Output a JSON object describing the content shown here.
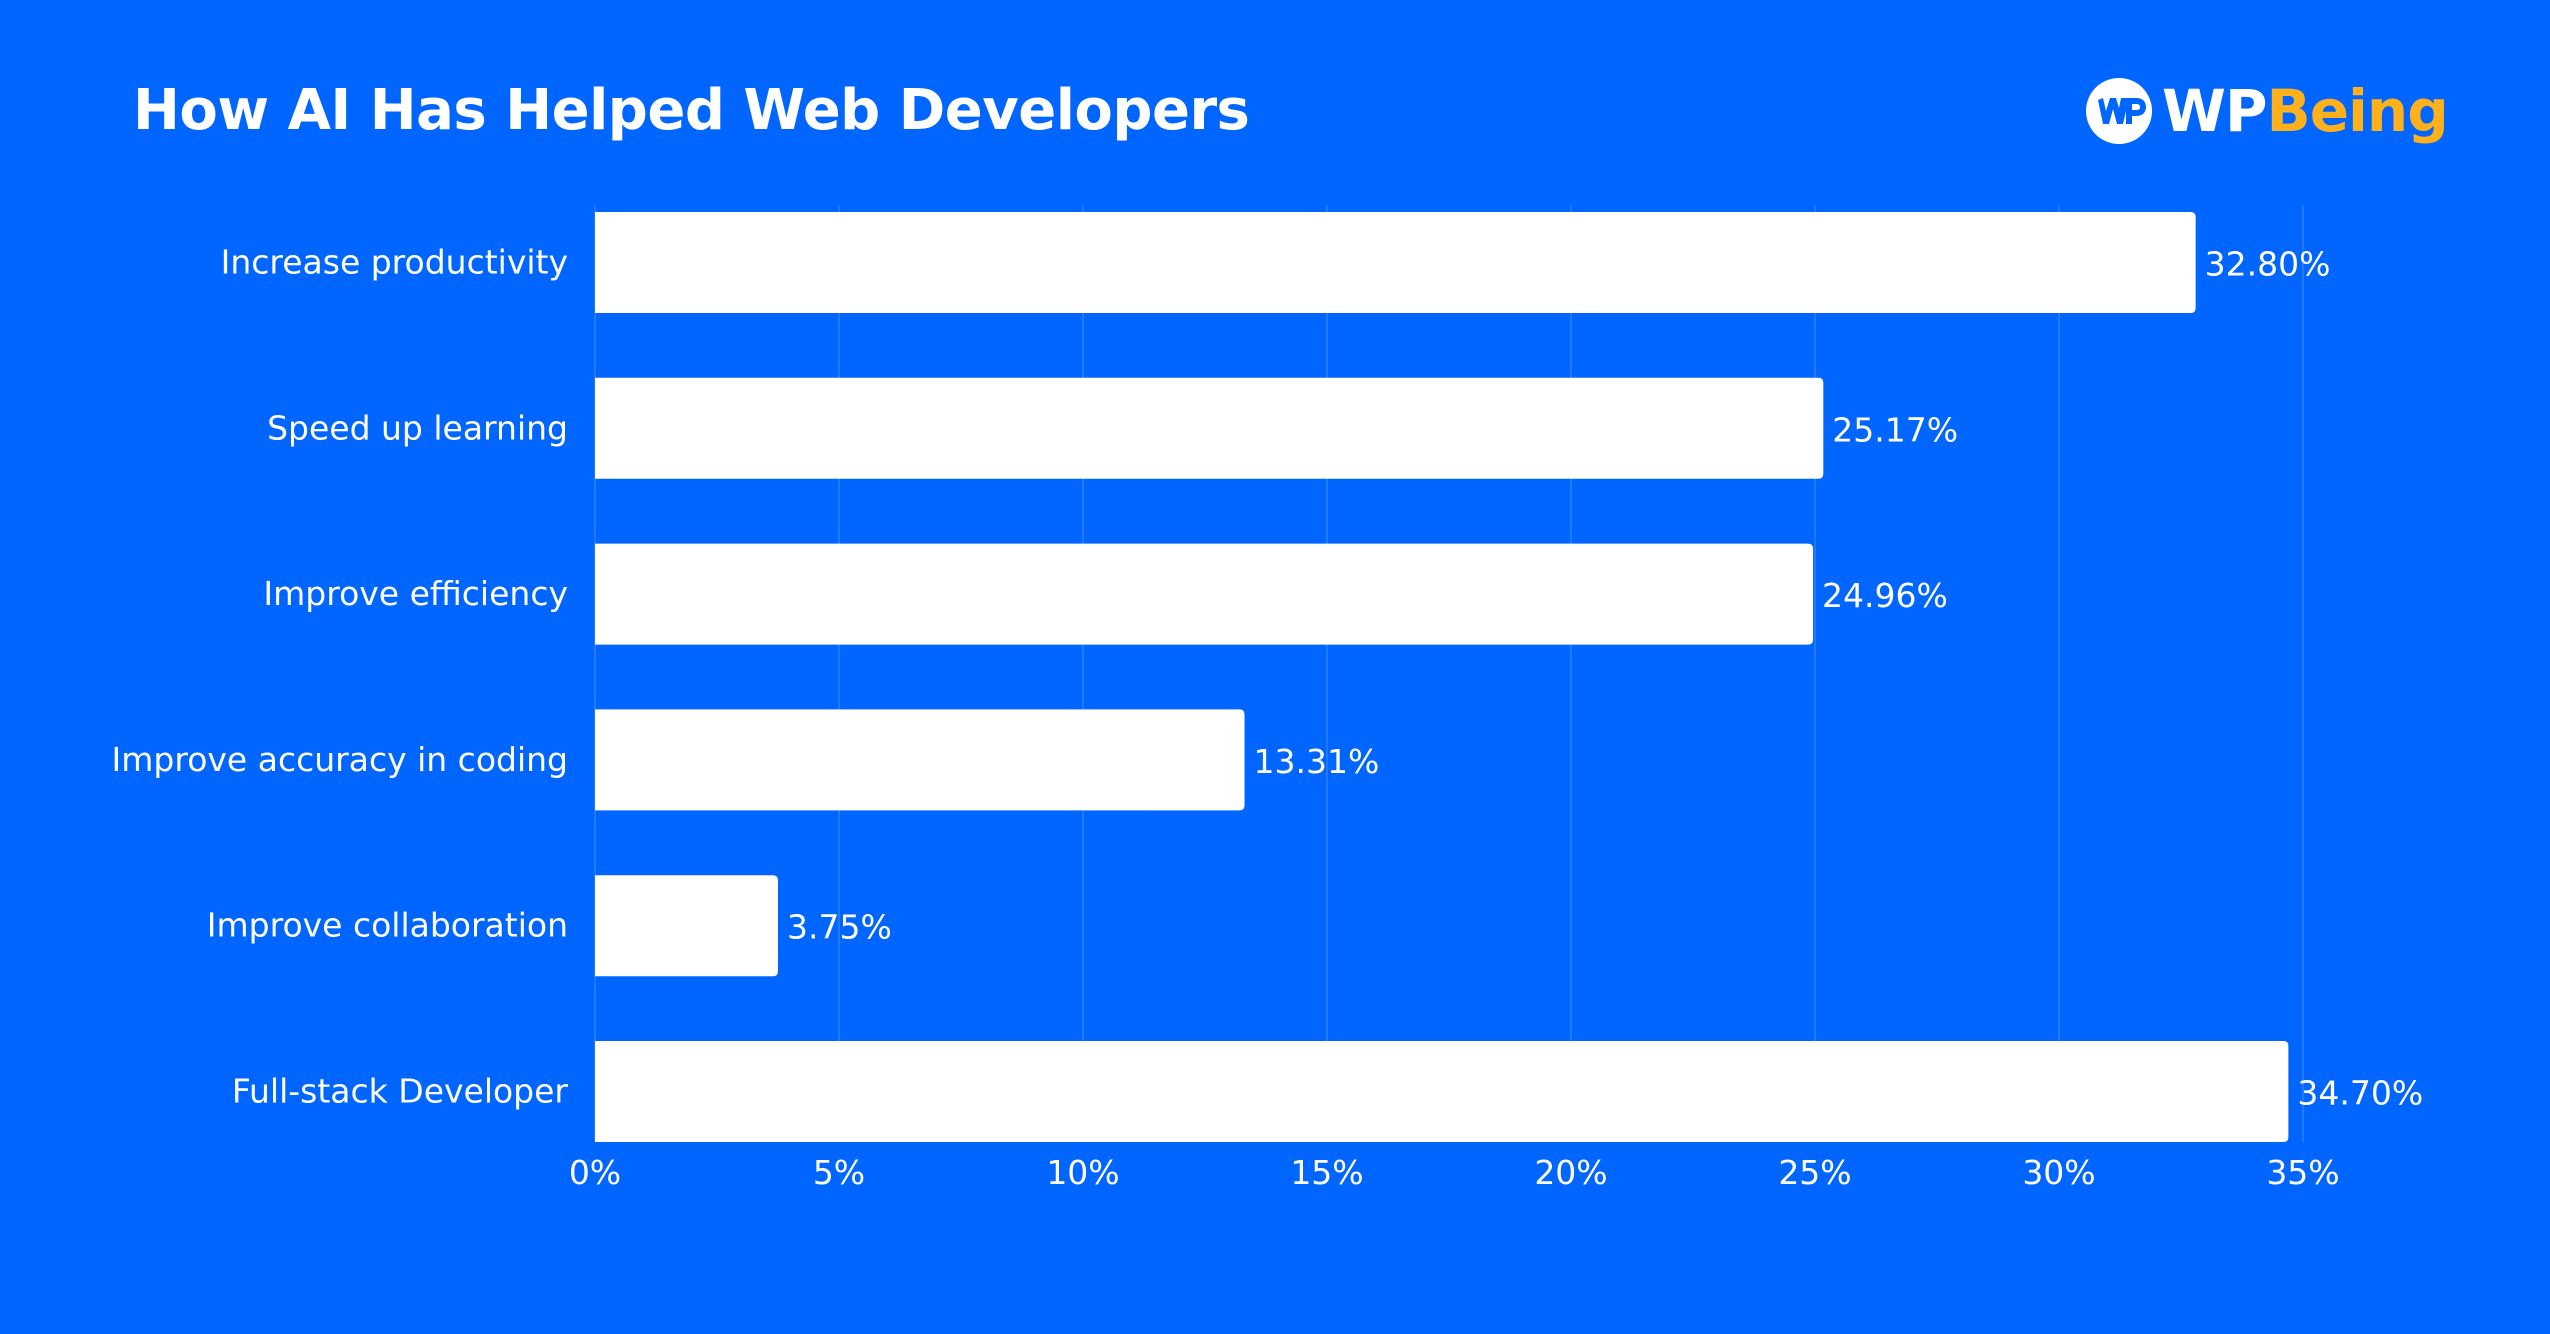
{
  "brand": {
    "name_part1": "WP",
    "name_part2": "Being",
    "icon": "wpbeing-logo-icon",
    "colors": {
      "background": "#0066FF",
      "bar": "#FFFFFF",
      "text": "#FFFFFF",
      "accent": "#FFB11B"
    }
  },
  "chart_data": {
    "type": "bar",
    "orientation": "horizontal",
    "title": "How AI Has Helped Web Developers",
    "categories": [
      "Increase productivity",
      "Speed up learning",
      "Improve efficiency",
      "Improve accuracy in coding",
      "Improve collaboration",
      "Full-stack Developer"
    ],
    "values": [
      32.8,
      25.17,
      24.96,
      13.31,
      3.75,
      34.7
    ],
    "value_labels": [
      "32.80%",
      "25.17%",
      "24.96%",
      "13.31%",
      "3.75%",
      "34.70%"
    ],
    "xlim": [
      0,
      35
    ],
    "xticks": [
      0,
      5,
      10,
      15,
      20,
      25,
      30,
      35
    ],
    "xtick_labels": [
      "0%",
      "5%",
      "10%",
      "15%",
      "20%",
      "25%",
      "30%",
      "35%"
    ],
    "xlabel": "",
    "ylabel": "",
    "grid": "vertical",
    "legend": "none"
  }
}
